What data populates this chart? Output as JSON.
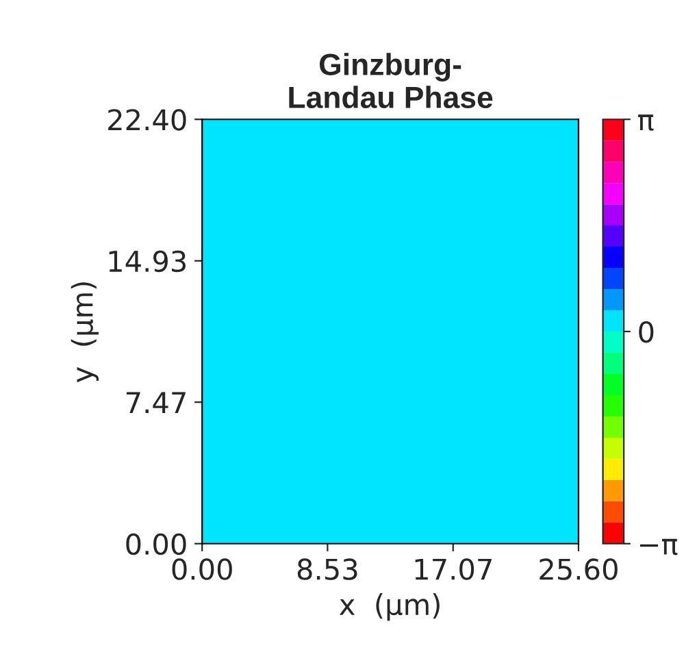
{
  "chart_data": {
    "type": "heatmap",
    "title": "Ginzburg-\nLandau Phase",
    "xlabel": "x  (μm)",
    "ylabel": "y  (μm)",
    "cells": [
      [
        0
      ]
    ],
    "xlim": [
      0,
      25.6
    ],
    "ylim": [
      0,
      22.4
    ],
    "xticks": [
      {
        "value": 0,
        "label": "0.00"
      },
      {
        "value": 8.53,
        "label": "8.53"
      },
      {
        "value": 17.07,
        "label": "17.07"
      },
      {
        "value": 25.6,
        "label": "25.60"
      }
    ],
    "yticks": [
      {
        "value": 0,
        "label": "0.00"
      },
      {
        "value": 7.47,
        "label": "7.47"
      },
      {
        "value": 14.93,
        "label": "14.93"
      },
      {
        "value": 22.4,
        "label": "22.40"
      }
    ],
    "clim": [
      -3.14159,
      3.14159
    ],
    "cticks": [
      {
        "value": -3.14159,
        "label": "−π"
      },
      {
        "value": 0,
        "label": "0"
      },
      {
        "value": 3.14159,
        "label": "π"
      }
    ]
  }
}
